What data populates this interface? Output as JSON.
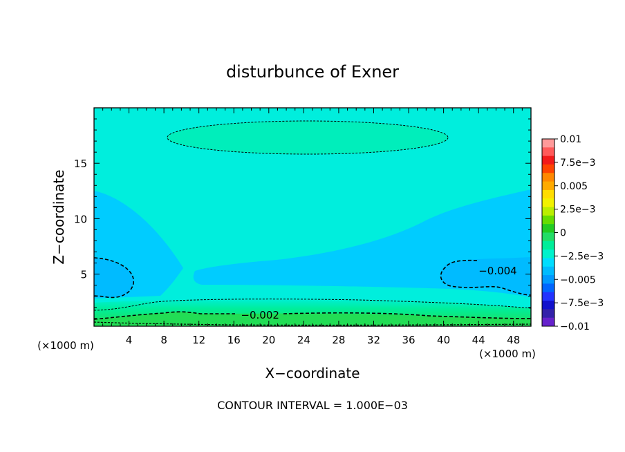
{
  "chart_data": {
    "type": "heatmap",
    "title": "disturbunce of Exner",
    "xlabel": "X−coordinate",
    "ylabel": "Z−coordinate",
    "x_unit": "(×1000 m)",
    "y_unit": "(×1000 m)",
    "footer": "CONTOUR INTERVAL = 1.000E−03",
    "xlim": [
      0,
      50
    ],
    "ylim": [
      0.3,
      20
    ],
    "x_ticks": [
      4,
      8,
      12,
      16,
      20,
      24,
      28,
      32,
      36,
      40,
      44,
      48
    ],
    "x_tick_labels": [
      "4",
      "8",
      "12",
      "16",
      "20",
      "24",
      "28",
      "32",
      "36",
      "40",
      "44",
      "48"
    ],
    "y_ticks": [
      5,
      10,
      15
    ],
    "y_tick_labels": [
      "5",
      "10",
      "15"
    ],
    "contour_labels": [
      {
        "text": "−0.004",
        "x": 46.2,
        "y": 5.3
      },
      {
        "text": "−0.002",
        "x": 19.0,
        "y": 1.3
      }
    ],
    "colorbar": {
      "levels": [
        -0.01,
        -0.0075,
        -0.005,
        -0.0025,
        0,
        0.0025,
        0.005,
        0.0075,
        0.01
      ],
      "tick_labels": [
        "0.01",
        "7.5e−3",
        "0.005",
        "2.5e−3",
        "0",
        "−2.5e−3",
        "−0.005",
        "−7.5e−3",
        "−0.01"
      ],
      "colors_top_to_bottom": [
        "#ff9a9a",
        "#ff5a5a",
        "#f21a1a",
        "#ff4400",
        "#ff8800",
        "#ffaa00",
        "#ffdd00",
        "#f2f200",
        "#bbee00",
        "#66dd00",
        "#22cc22",
        "#22dd66",
        "#00ee99",
        "#00f2cc",
        "#00ddff",
        "#00bbff",
        "#0099ff",
        "#0066ff",
        "#2233ff",
        "#1111cc",
        "#3322aa",
        "#6622cc"
      ]
    },
    "field_colors": {
      "background": "#00eedd",
      "lower_disturbance": "#00ccff",
      "surface_band": "#22dd66",
      "upper_maximum": "#00eebb",
      "minimum": "#00bbff"
    }
  }
}
